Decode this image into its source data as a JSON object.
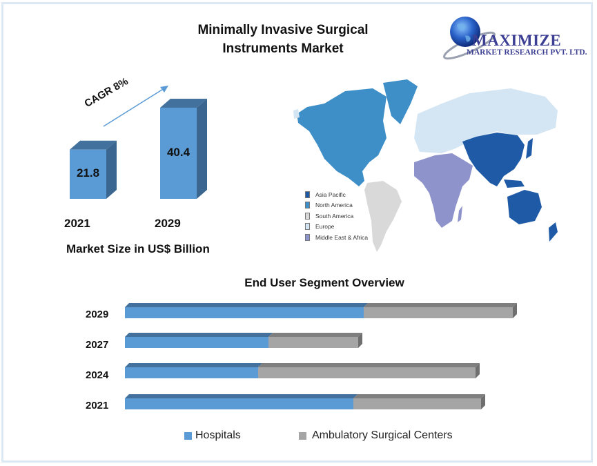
{
  "title_line1": "Minimally Invasive Surgical",
  "title_line2": "Instruments Market",
  "logo": {
    "name": "MAXIMIZE",
    "subtitle": "MARKET RESEARCH PVT. LTD.",
    "icon": "globe-icon",
    "color": "#3c3f93"
  },
  "colors": {
    "bar_front": "#5b9bd5",
    "bar_top": "#41719c",
    "bar_side": "#3a6690",
    "asc_front": "#a5a5a5",
    "asc_top": "#7f7f7f",
    "border": "#dce8f4"
  },
  "chart_data": [
    {
      "type": "bar",
      "title": "Market Size in US$ Billion",
      "categories": [
        "2021",
        "2029"
      ],
      "values": [
        21.8,
        40.4
      ],
      "value_labels": [
        "21.8",
        "40.4"
      ],
      "annotation": "CAGR 8%",
      "xlabel": "",
      "ylabel": ""
    },
    {
      "type": "bar",
      "orientation": "horizontal",
      "stacked": true,
      "title": "End User Segment Overview",
      "categories": [
        "2029",
        "2027",
        "2024",
        "2021"
      ],
      "series": [
        {
          "name": "Hospitals",
          "color": "#5b9bd5",
          "values": [
            346,
            208,
            193,
            331
          ]
        },
        {
          "name": "Ambulatory Surgical Centers",
          "color": "#a5a5a5",
          "values": [
            216,
            130,
            315,
            185
          ]
        }
      ],
      "units": "relative (no axis shown)",
      "legend": "bottom"
    },
    {
      "type": "map",
      "legend_title": "",
      "legend": [
        {
          "label": "Asia Pacific",
          "color": "#1f5aa6"
        },
        {
          "label": "North America",
          "color": "#3e8fc7"
        },
        {
          "label": "South America",
          "color": "#d9d9d9"
        },
        {
          "label": "Europe",
          "color": "#d4e6f3"
        },
        {
          "label": "Middle East & Africa",
          "color": "#8e93cb"
        }
      ]
    }
  ]
}
